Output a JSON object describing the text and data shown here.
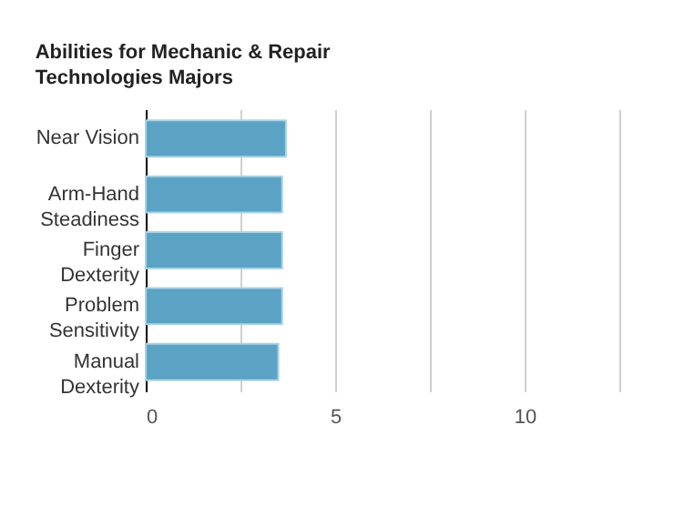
{
  "chart_data": {
    "type": "bar",
    "orientation": "horizontal",
    "title": "Abilities for Mechanic & Repair Technologies Majors",
    "categories": [
      "Near Vision",
      "Arm-Hand Steadiness",
      "Finger Dexterity",
      "Problem Sensitivity",
      "Manual Dexterity"
    ],
    "values": [
      3.7,
      3.6,
      3.6,
      3.6,
      3.5
    ],
    "color": "#5ba3c4",
    "xlim": [
      0,
      12.5
    ],
    "xticks": [
      0,
      {
        "value": 2.5,
        "label": null
      },
      5,
      {
        "value": 7.5,
        "label": null
      },
      10,
      {
        "value": 12.5,
        "label": null
      }
    ],
    "grid": "x"
  }
}
